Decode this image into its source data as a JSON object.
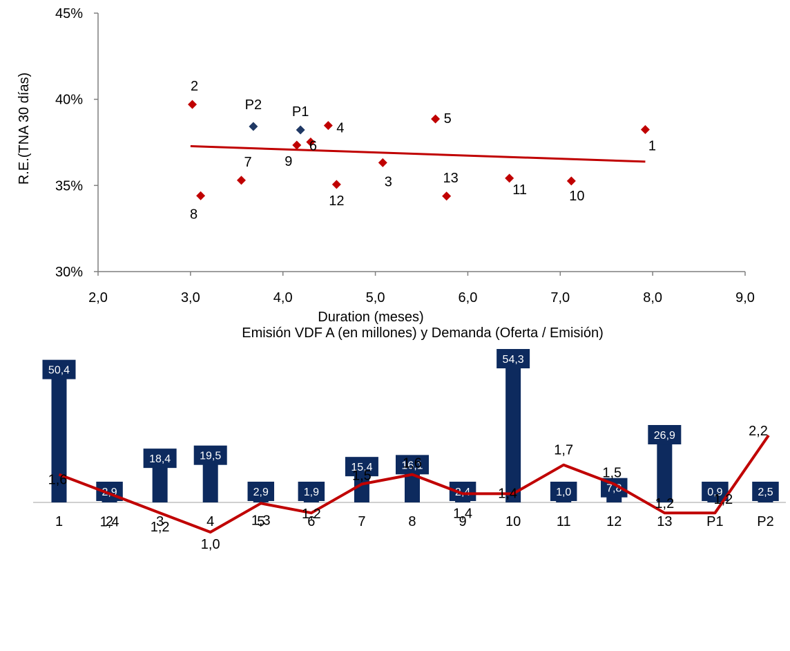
{
  "chart_data": [
    {
      "type": "scatter",
      "xlabel": "Duration (meses)",
      "ylabel": "R.E.(TNA 30 días)",
      "xlim": [
        2.0,
        9.0
      ],
      "ylim": [
        0.3,
        0.45
      ],
      "xticks": [
        "2,0",
        "3,0",
        "4,0",
        "5,0",
        "6,0",
        "7,0",
        "8,0",
        "9,0"
      ],
      "yticks": [
        "30%",
        "35%",
        "40%",
        "45%"
      ],
      "colors": {
        "series": "#c00000",
        "highlight": "#1f3864",
        "trend": "#c00000"
      },
      "points": [
        {
          "label": "1",
          "x": 7.92,
          "y": 0.3824,
          "group": "series"
        },
        {
          "label": "2",
          "x": 3.02,
          "y": 0.397,
          "group": "series"
        },
        {
          "label": "3",
          "x": 5.08,
          "y": 0.3632,
          "group": "series"
        },
        {
          "label": "4",
          "x": 4.49,
          "y": 0.3848,
          "group": "series"
        },
        {
          "label": "5",
          "x": 5.65,
          "y": 0.3886,
          "group": "series"
        },
        {
          "label": "6",
          "x": 4.3,
          "y": 0.3752,
          "group": "series"
        },
        {
          "label": "7",
          "x": 3.55,
          "y": 0.353,
          "group": "series"
        },
        {
          "label": "8",
          "x": 3.11,
          "y": 0.344,
          "group": "series"
        },
        {
          "label": "9",
          "x": 4.15,
          "y": 0.3734,
          "group": "series"
        },
        {
          "label": "10",
          "x": 7.12,
          "y": 0.3526,
          "group": "series"
        },
        {
          "label": "11",
          "x": 6.45,
          "y": 0.3542,
          "group": "series"
        },
        {
          "label": "12",
          "x": 4.58,
          "y": 0.3506,
          "group": "series"
        },
        {
          "label": "13",
          "x": 5.77,
          "y": 0.3438,
          "group": "series"
        },
        {
          "label": "P1",
          "x": 4.19,
          "y": 0.3822,
          "group": "highlight"
        },
        {
          "label": "P2",
          "x": 3.68,
          "y": 0.3842,
          "group": "highlight"
        }
      ],
      "trendline": {
        "x": [
          3.0,
          7.92
        ],
        "y": [
          0.3728,
          0.3638
        ]
      }
    },
    {
      "type": "bar",
      "title": "Emisión VDF A (en millones) y Demanda (Oferta / Emisión)",
      "categories": [
        "1",
        "2",
        "3",
        "4",
        "5",
        "6",
        "7",
        "8",
        "9",
        "10",
        "11",
        "12",
        "13",
        "P1",
        "P2"
      ],
      "colors": {
        "bar": "#0d2a5e",
        "line": "#c00000"
      },
      "series": [
        {
          "type": "bar",
          "values": [
            50.4,
            2.9,
            18.4,
            19.5,
            2.9,
            1.9,
            15.4,
            16.1,
            2.4,
            54.3,
            1.0,
            7.8,
            26.9,
            0.9,
            2.5
          ],
          "labels": [
            "50,4",
            "2,9",
            "18,4",
            "19,5",
            "2,9",
            "1,9",
            "15,4",
            "16,1",
            "2,4",
            "54,3",
            "1,0",
            "7,8",
            "26,9",
            "0,9",
            "2,5"
          ]
        },
        {
          "type": "line",
          "values": [
            1.6,
            1.4,
            1.2,
            1.0,
            1.3,
            1.2,
            1.5,
            1.6,
            1.4,
            1.4,
            1.7,
            1.5,
            1.2,
            1.2,
            2.2
          ],
          "labels": [
            "1,6",
            "1,4",
            "1,2",
            "1,0",
            "1,3",
            "1,2",
            "1,5",
            "1,6",
            "1,4",
            "1,4",
            "1,7",
            "1,5",
            "1,2",
            "1,2",
            "2,2"
          ]
        }
      ]
    }
  ]
}
